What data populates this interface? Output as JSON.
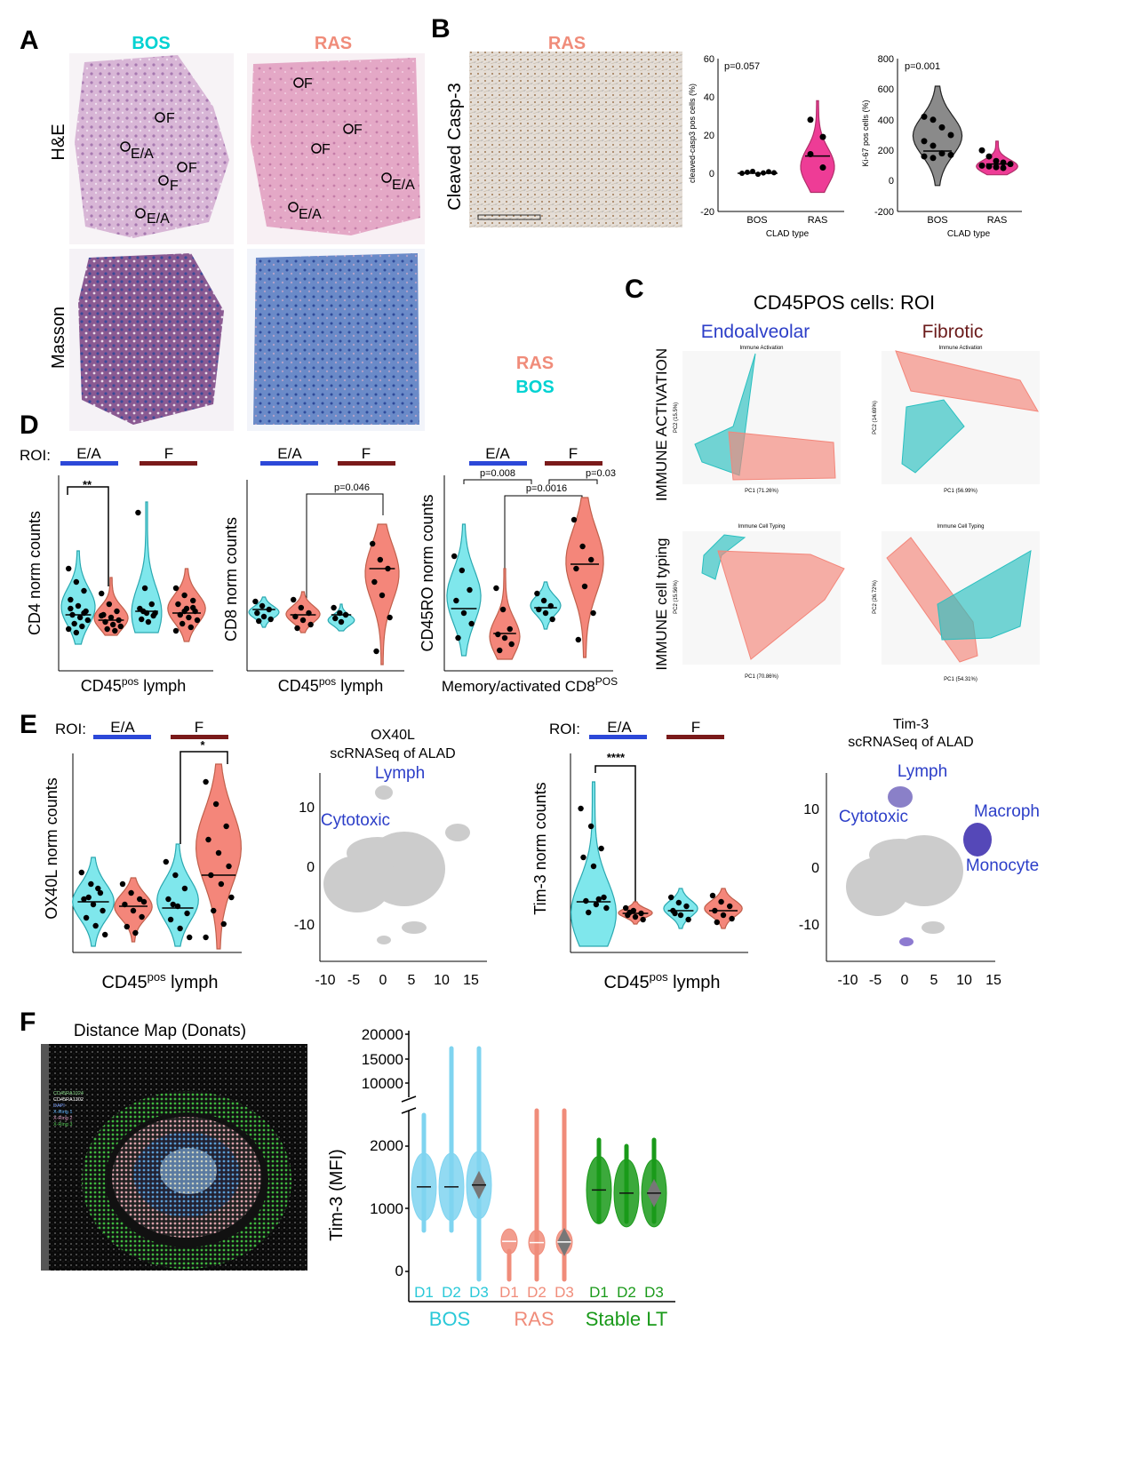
{
  "colors": {
    "bos": "#00d2d2",
    "ras": "#f08c7a",
    "bos_fill": "#7fe7ec",
    "ras_fill": "#f4867a",
    "ea_bar": "#2c48d8",
    "f_bar": "#7a1a1a",
    "stable": "#1a9a1a",
    "blue_label": "#2c3ec8",
    "pink": "#ee3c96"
  },
  "panel_a": {
    "letter": "A",
    "bos": "BOS",
    "ras": "RAS",
    "row_he": "H&E",
    "row_masson": "Masson",
    "bos_he_labels": [
      "F",
      "E/A",
      "F",
      "F",
      "E/A"
    ],
    "ras_he_labels": [
      "F",
      "F",
      "F",
      "E/A",
      "E/A"
    ],
    "legend_ras": "RAS",
    "legend_bos": "BOS"
  },
  "panel_b": {
    "letter": "B",
    "title": "RAS",
    "stain": "Cleaved Casp-3",
    "plot1": {
      "pval": "p=0.057",
      "ylabel": "cleaved-casp3 pos cells (%)",
      "xlabel": "CLAD type",
      "yticks": [
        "60",
        "40",
        "20",
        "0",
        "-20"
      ],
      "cats": [
        "BOS",
        "RAS"
      ]
    },
    "plot2": {
      "pval": "p=0.001",
      "ylabel": "Ki-67 pos cells (%)",
      "xlabel": "CLAD type",
      "yticks": [
        "800",
        "600",
        "400",
        "200",
        "0",
        "-200"
      ],
      "cats": [
        "BOS",
        "RAS"
      ]
    }
  },
  "panel_c": {
    "letter": "C",
    "title": "CD45POS cells: ROI",
    "col1": "Endoalveolar",
    "col2": "Fibrotic",
    "row1": "IMMUNE ACTIVATION",
    "row2": "IMMUNE cell typing",
    "sub1": "Immune Activation",
    "sub2": "Immune Cell Typing",
    "pc_ea_act": "PC1 (71.26%)",
    "pc_f_act": "PC1 (56.99%)",
    "pc_ea_typ": "PC1 (70.86%)",
    "pc_f_typ": "PC1 (54.31%)",
    "pc2_ea_act": "PC2 (15.5%)",
    "pc2_f_act": "PC2 (14.69%)",
    "pc2_ea_typ": "PC2 (15.56%)",
    "pc2_f_typ": "PC2 (26.72%)"
  },
  "panel_d": {
    "letter": "D",
    "roi": "ROI:",
    "ea": "E/A",
    "f": "F",
    "p1_ylabel": "CD4 norm counts",
    "p1_xlabel": "CD45pos lymph",
    "p1_star": "**",
    "p2_ylabel": "CD8 norm counts",
    "p2_xlabel": "CD45pos lymph",
    "p2_p": "p=0.046",
    "p3_ylabel": "CD45RO norm counts",
    "p3_xlabel": "Memory/activated CD8POS",
    "p3_p1": "p=0.008",
    "p3_p2": "p=0.0016",
    "p3_p3": "p=0.03"
  },
  "panel_e": {
    "letter": "E",
    "roi": "ROI:",
    "ea": "E/A",
    "f": "F",
    "p1_ylabel": "OX40L norm counts",
    "p1_xlabel": "CD45pos lymph",
    "p1_star": "*",
    "umap1_title1": "OX40L",
    "umap1_title2": "scRNASeq of ALAD",
    "umap1_labels": [
      "Lymph",
      "Cytotoxic"
    ],
    "p2_ylabel": "Tim-3 norm counts",
    "p2_xlabel": "CD45pos lymph",
    "p2_star": "****",
    "umap2_title1": "Tim-3",
    "umap2_title2": "scRNASeq of ALAD",
    "umap2_labels": [
      "Lymph",
      "Cytotoxic",
      "Macroph",
      "Monocyte"
    ],
    "umap_xticks": [
      "-10",
      "-5",
      "0",
      "5",
      "10",
      "15"
    ],
    "umap_yticks": [
      "10",
      "0",
      "-10"
    ]
  },
  "panel_f": {
    "letter": "F",
    "title": "Distance Map (Donats)",
    "legend_lines": [
      "CD45RA1024",
      "CD45RA1302",
      "DAPI",
      "X-Ring 1",
      "X-Ring 2",
      "X-Ring 3"
    ],
    "ylabel": "Tim-3 (MFI)",
    "yticks_top": [
      "20000",
      "15000",
      "10000"
    ],
    "yticks_bottom": [
      "2000",
      "1000",
      "0"
    ],
    "groups": [
      {
        "name": "BOS",
        "donors": [
          "D1",
          "D2",
          "D3"
        ]
      },
      {
        "name": "RAS",
        "donors": [
          "D1",
          "D2",
          "D3"
        ]
      },
      {
        "name": "Stable LT",
        "donors": [
          "D1",
          "D2",
          "D3"
        ]
      }
    ]
  },
  "chart_data": [
    {
      "type": "scatter",
      "title": "cleaved-casp3 pos cells (%)",
      "categories": [
        "BOS",
        "RAS"
      ],
      "xlabel": "CLAD type",
      "ylabel": "cleaved-casp3 pos cells (%)",
      "ylim": [
        -20,
        60
      ],
      "series": [
        {
          "name": "BOS",
          "values": [
            0,
            0.5,
            1,
            -0.5,
            0.2,
            0.8,
            0.3
          ]
        },
        {
          "name": "RAS",
          "values": [
            28,
            19,
            10,
            3
          ]
        }
      ],
      "annotation": "p=0.057"
    },
    {
      "type": "scatter",
      "title": "Ki-67 pos cells (%)",
      "categories": [
        "BOS",
        "RAS"
      ],
      "xlabel": "CLAD type",
      "ylabel": "Ki-67 pos cells (%)",
      "ylim": [
        -200,
        800
      ],
      "series": [
        {
          "name": "BOS",
          "values": [
            420,
            400,
            350,
            300,
            260,
            230,
            180,
            170,
            160,
            150
          ]
        },
        {
          "name": "RAS",
          "values": [
            200,
            160,
            130,
            120,
            110,
            100,
            95,
            90,
            85
          ]
        }
      ],
      "annotation": "p=0.001"
    },
    {
      "type": "scatter",
      "title": "CD4 norm counts",
      "categories": [
        "BOS E/A",
        "RAS E/A",
        "BOS F",
        "RAS F"
      ],
      "series": [
        {
          "name": "median",
          "values": [
            38,
            30,
            38,
            38
          ]
        }
      ]
    },
    {
      "type": "scatter",
      "title": "CD8 norm counts",
      "categories": [
        "BOS E/A",
        "RAS E/A",
        "BOS F",
        "RAS F"
      ],
      "series": [
        {
          "name": "median",
          "values": [
            40,
            36,
            36,
            68
          ]
        }
      ]
    },
    {
      "type": "scatter",
      "title": "CD45RO norm counts",
      "categories": [
        "BOS E/A",
        "RAS E/A",
        "BOS F",
        "RAS F"
      ],
      "series": [
        {
          "name": "median",
          "values": [
            46,
            28,
            48,
            78
          ]
        }
      ]
    },
    {
      "type": "scatter",
      "title": "OX40L norm counts",
      "categories": [
        "BOS E/A",
        "RAS E/A",
        "BOS F",
        "RAS F"
      ],
      "series": [
        {
          "name": "median",
          "values": [
            46,
            40,
            42,
            60
          ]
        }
      ]
    },
    {
      "type": "scatter",
      "title": "Tim-3 norm counts",
      "categories": [
        "BOS E/A",
        "RAS E/A",
        "BOS F",
        "RAS F"
      ],
      "series": [
        {
          "name": "median",
          "values": [
            34,
            28,
            30,
            30
          ]
        }
      ]
    },
    {
      "type": "scatter",
      "title": "PCA Immune Activation (Endoalveolar)",
      "xlabel": "PC1 (71.26%)",
      "ylabel": "PC2 (15.5%)"
    },
    {
      "type": "scatter",
      "title": "PCA Immune Activation (Fibrotic)",
      "xlabel": "PC1 (56.99%)",
      "ylabel": "PC2 (14.69%)"
    },
    {
      "type": "scatter",
      "title": "PCA Immune Cell Typing (Endoalveolar)",
      "xlabel": "PC1 (70.86%)",
      "ylabel": "PC2 (15.56%)"
    },
    {
      "type": "scatter",
      "title": "PCA Immune Cell Typing (Fibrotic)",
      "xlabel": "PC1 (54.31%)",
      "ylabel": "PC2 (26.72%)"
    },
    {
      "type": "bar",
      "title": "Tim-3 (MFI)",
      "ylabel": "Tim-3 (MFI)",
      "categories": [
        "BOS D1",
        "BOS D2",
        "BOS D3",
        "RAS D1",
        "RAS D2",
        "RAS D3",
        "Stable LT D1",
        "Stable LT D2",
        "Stable LT D3"
      ],
      "values": [
        1350,
        1350,
        1380,
        480,
        460,
        470,
        1300,
        1250,
        1250
      ],
      "ylim": [
        0,
        20000
      ]
    }
  ]
}
